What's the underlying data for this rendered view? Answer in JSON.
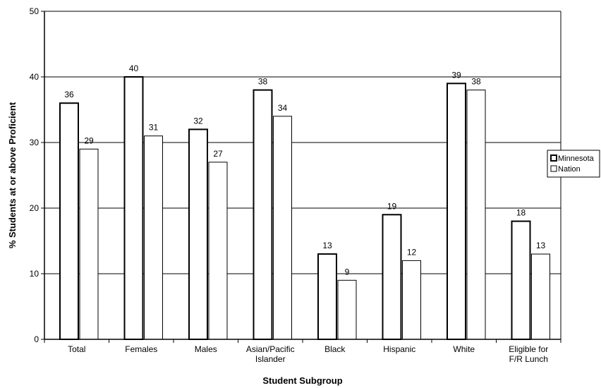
{
  "chart_data": {
    "type": "bar",
    "title": "",
    "xlabel": "Student Subgroup",
    "ylabel": "% Students at or above Proficient",
    "ylim": [
      0,
      50
    ],
    "yticks": [
      0,
      10,
      20,
      30,
      40,
      50
    ],
    "grid": true,
    "legend_position": "right",
    "categories": [
      [
        "Total"
      ],
      [
        "Females"
      ],
      [
        "Males"
      ],
      [
        "Asian/Pacific",
        "Islander"
      ],
      [
        "Black"
      ],
      [
        "Hispanic"
      ],
      [
        "White"
      ],
      [
        "Eligible for",
        "F/R Lunch"
      ]
    ],
    "series": [
      {
        "name": "Minnesota",
        "values": [
          36,
          40,
          32,
          38,
          13,
          19,
          39,
          18
        ],
        "stroke_width": 2
      },
      {
        "name": "Nation",
        "values": [
          29,
          31,
          27,
          34,
          9,
          12,
          38,
          13
        ],
        "stroke_width": 1
      }
    ],
    "colors": {
      "bar_fill": "#ffffff",
      "bar_stroke": "#000000",
      "grid": "#000000"
    }
  }
}
